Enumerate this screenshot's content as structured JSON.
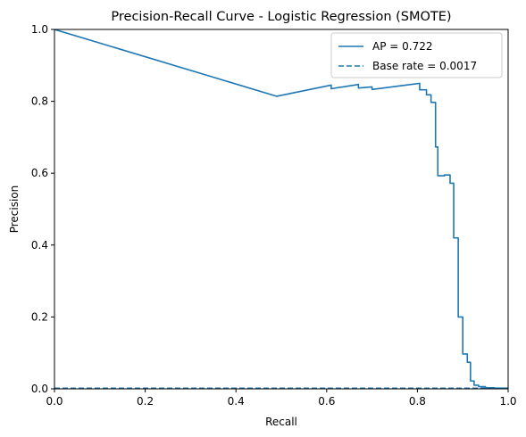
{
  "chart_data": {
    "type": "line",
    "title": "Precision-Recall Curve - Logistic Regression (SMOTE)",
    "xlabel": "Recall",
    "ylabel": "Precision",
    "xlim": [
      0,
      1
    ],
    "ylim": [
      0,
      1
    ],
    "xticks": [
      0.0,
      0.2,
      0.4,
      0.6,
      0.8,
      1.0
    ],
    "yticks": [
      0.0,
      0.2,
      0.4,
      0.6,
      0.8,
      1.0
    ],
    "grid": false,
    "legend_position": "top-right",
    "series": [
      {
        "name": "AP = 0.722",
        "style": "solid",
        "color": "#1f77b4",
        "x": [
          0.0,
          0.49,
          0.61,
          0.61,
          0.67,
          0.67,
          0.7,
          0.7,
          0.805,
          0.805,
          0.82,
          0.82,
          0.83,
          0.83,
          0.84,
          0.84,
          0.845,
          0.845,
          0.86,
          0.86,
          0.872,
          0.872,
          0.88,
          0.88,
          0.89,
          0.89,
          0.9,
          0.9,
          0.91,
          0.91,
          0.917,
          0.917,
          0.925,
          0.925,
          0.935,
          0.935,
          0.95,
          0.95,
          0.97,
          0.97,
          1.0
        ],
        "y": [
          1.0,
          0.814,
          0.845,
          0.835,
          0.847,
          0.837,
          0.84,
          0.833,
          0.85,
          0.832,
          0.832,
          0.818,
          0.818,
          0.797,
          0.797,
          0.673,
          0.673,
          0.593,
          0.593,
          0.595,
          0.595,
          0.572,
          0.572,
          0.42,
          0.42,
          0.2,
          0.2,
          0.097,
          0.097,
          0.074,
          0.074,
          0.022,
          0.022,
          0.01,
          0.01,
          0.006,
          0.006,
          0.003,
          0.003,
          0.002,
          0.002
        ]
      },
      {
        "name": "Base rate = 0.0017",
        "style": "dashed",
        "color": "#1f77b4",
        "x": [
          0.0,
          1.0
        ],
        "y": [
          0.0017,
          0.0017
        ]
      }
    ]
  }
}
